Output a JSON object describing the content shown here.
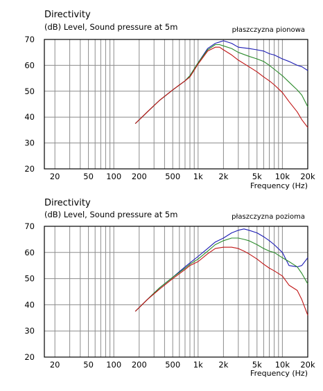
{
  "colors": {
    "background": "#ffffff",
    "grid": "#8c8c8c",
    "axis_frame": "#000000",
    "series": [
      "#1a1ab4",
      "#2a8a2a",
      "#c01414"
    ]
  },
  "chart_data": [
    {
      "type": "line",
      "title": "Directivity",
      "subtitle": "(dB)  Level, Sound pressure at 5m",
      "annotation": "płaszczyzna pionowa",
      "xlabel": "Frequency  (Hz)",
      "ylabel": "",
      "xscale": "log",
      "xlim": [
        15,
        20000
      ],
      "ylim": [
        20,
        70
      ],
      "grid": true,
      "x_tick_labels": [
        "20",
        "50",
        "100",
        "200",
        "500",
        "1k",
        "2k",
        "5k",
        "10k",
        "20k"
      ],
      "y_tick_labels": [
        "70",
        "60",
        "50",
        "40",
        "30",
        "20"
      ],
      "series": [
        {
          "color": "#1a1ab4",
          "x": [
            180,
            250,
            350,
            500,
            700,
            800,
            1000,
            1300,
            1600,
            1800,
            2000,
            2500,
            3000,
            4000,
            5000,
            6000,
            7000,
            8000,
            10000,
            12000,
            15000,
            17000,
            20000
          ],
          "y": [
            37.5,
            42,
            46.5,
            50.5,
            54,
            56,
            61,
            66.5,
            68.5,
            69,
            69.5,
            68.5,
            67,
            66.5,
            66,
            65.5,
            64.5,
            64,
            62.5,
            61.5,
            60,
            59.5,
            58
          ]
        },
        {
          "color": "#2a8a2a",
          "x": [
            180,
            250,
            350,
            500,
            700,
            800,
            1000,
            1300,
            1600,
            1800,
            2000,
            2500,
            3000,
            4000,
            5000,
            6000,
            7000,
            8000,
            10000,
            12000,
            15000,
            17000,
            20000
          ],
          "y": [
            37.5,
            42,
            46.5,
            50.5,
            54,
            56,
            61,
            66,
            68,
            68,
            67.5,
            66.5,
            65,
            63.5,
            62.5,
            61.5,
            60,
            58.5,
            56,
            53.5,
            50.5,
            48.5,
            44
          ]
        },
        {
          "color": "#c01414",
          "x": [
            180,
            250,
            350,
            500,
            700,
            800,
            1000,
            1300,
            1600,
            1800,
            2000,
            2500,
            3000,
            4000,
            5000,
            6000,
            7000,
            8000,
            10000,
            12000,
            15000,
            17000,
            20000
          ],
          "y": [
            37.5,
            42,
            46.5,
            50.5,
            54,
            55.5,
            60.5,
            65.5,
            67,
            67,
            66,
            64,
            62,
            59.5,
            57.5,
            55.5,
            54,
            52.5,
            49.5,
            46,
            42,
            39,
            36
          ]
        }
      ]
    },
    {
      "type": "line",
      "title": "Directivity",
      "subtitle": "(dB)  Level, Sound pressure at 5m",
      "annotation": "płaszczyzna pozioma",
      "xlabel": "Frequency  (Hz)",
      "ylabel": "",
      "xscale": "log",
      "xlim": [
        15,
        20000
      ],
      "ylim": [
        20,
        70
      ],
      "grid": true,
      "x_tick_labels": [
        "20",
        "50",
        "100",
        "200",
        "500",
        "1k",
        "2k",
        "5k",
        "10k",
        "20k"
      ],
      "y_tick_labels": [
        "70",
        "60",
        "50",
        "40",
        "30",
        "20"
      ],
      "series": [
        {
          "color": "#1a1ab4",
          "x": [
            180,
            250,
            350,
            500,
            700,
            800,
            1000,
            1300,
            1600,
            2000,
            2500,
            3000,
            3500,
            4000,
            5000,
            6000,
            7000,
            8000,
            10000,
            12000,
            15000,
            17000,
            20000
          ],
          "y": [
            37.5,
            42,
            46.5,
            50.5,
            54.5,
            56,
            58.5,
            61.5,
            64,
            65.5,
            67.5,
            68.5,
            69,
            68.5,
            67.5,
            66,
            64.5,
            63,
            60,
            55,
            54.5,
            55,
            58
          ]
        },
        {
          "color": "#2a8a2a",
          "x": [
            180,
            250,
            350,
            500,
            700,
            800,
            1000,
            1300,
            1600,
            2000,
            2500,
            3000,
            3500,
            4000,
            5000,
            6000,
            7000,
            8000,
            10000,
            12000,
            15000,
            17000,
            20000
          ],
          "y": [
            37.5,
            42,
            46.5,
            50.5,
            54,
            55.5,
            57.5,
            60.5,
            63,
            64.5,
            65.5,
            65.5,
            65,
            64.5,
            63,
            61.5,
            60.5,
            60,
            58,
            56.5,
            54.5,
            52,
            48
          ]
        },
        {
          "color": "#c01414",
          "x": [
            180,
            250,
            350,
            500,
            700,
            800,
            1000,
            1300,
            1600,
            2000,
            2500,
            3000,
            3500,
            4000,
            5000,
            6000,
            7000,
            8000,
            10000,
            12000,
            15000,
            17000,
            20000
          ],
          "y": [
            37.5,
            42,
            46,
            50,
            53.5,
            55,
            56.5,
            59.5,
            61.5,
            62,
            62,
            61.5,
            60.5,
            59.5,
            57.5,
            55.5,
            54,
            53,
            51,
            47.5,
            45.5,
            42,
            36
          ]
        }
      ]
    }
  ]
}
